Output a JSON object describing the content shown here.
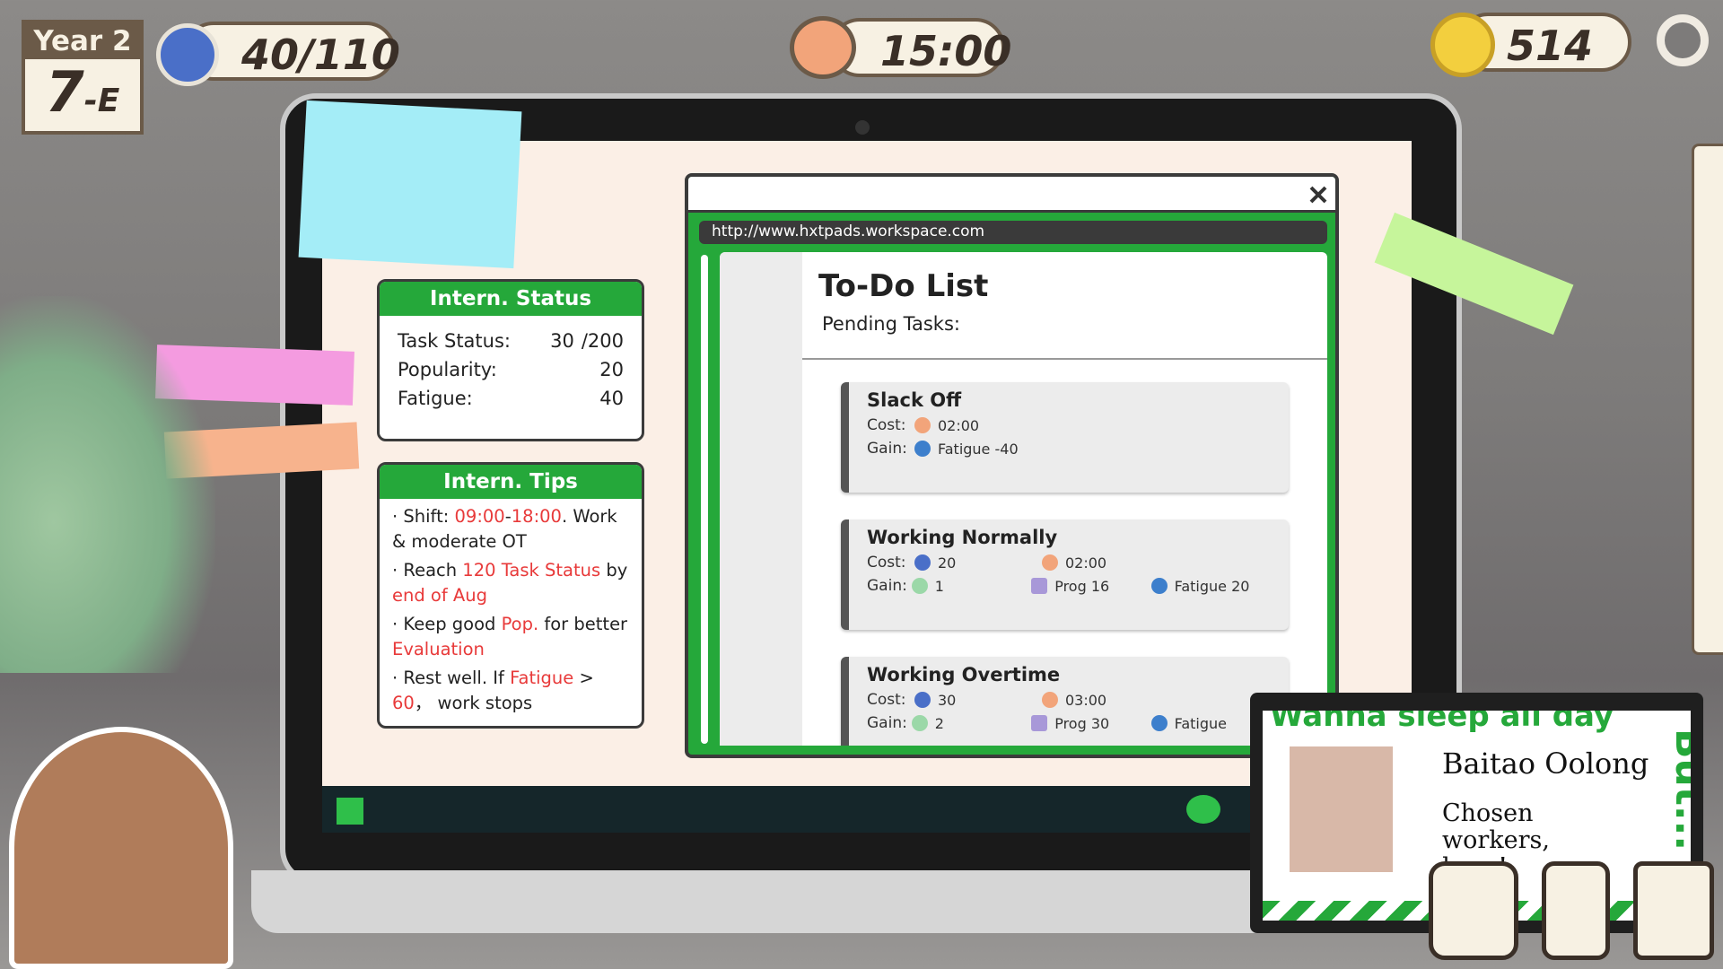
{
  "hud": {
    "year": "Year 2",
    "week": "7",
    "week_suffix": "-E",
    "energy": "40",
    "energy_max": "/110",
    "time": "15:00",
    "coins": "514"
  },
  "status": {
    "title": "Intern. Status",
    "rows": [
      {
        "label": "Task Status:",
        "value": "30",
        "max": "/200"
      },
      {
        "label": "Popularity:",
        "value": "20"
      },
      {
        "label": "Fatigue:",
        "value": "40"
      }
    ]
  },
  "tips": {
    "title": "Intern. Tips",
    "items": [
      [
        {
          "text": "· Shift: "
        },
        {
          "text": "09:00",
          "highlight": true
        },
        {
          "text": "-"
        },
        {
          "text": "18:00",
          "highlight": true
        },
        {
          "text": ". Work & moderate OT"
        }
      ],
      [
        {
          "text": "· Reach "
        },
        {
          "text": "120 Task Status",
          "highlight": true
        },
        {
          "text": " by "
        },
        {
          "text": "end of Aug",
          "highlight": true
        }
      ],
      [
        {
          "text": "· Keep good "
        },
        {
          "text": "Pop.",
          "highlight": true
        },
        {
          "text": " for better "
        },
        {
          "text": "Evaluation",
          "highlight": true
        }
      ],
      [
        {
          "text": "· Rest well. If "
        },
        {
          "text": "Fatigue",
          "highlight": true
        },
        {
          "text": " > "
        },
        {
          "text": "60",
          "highlight": true
        },
        {
          "text": "，  work stops"
        }
      ]
    ]
  },
  "browser": {
    "url": "http://www.hxtpads.workspace.com",
    "title": "To-Do List",
    "subtitle": "Pending Tasks:",
    "tasks": [
      {
        "name": "Slack Off",
        "cost_label": "Cost:",
        "gain_label": "Gain:",
        "cost": [
          {
            "icon": "clock",
            "text": "02:00"
          }
        ],
        "gain": [
          {
            "icon": "moon",
            "text": "Fatigue -40"
          }
        ]
      },
      {
        "name": "Working Normally",
        "cost_label": "Cost:",
        "gain_label": "Gain:",
        "cost": [
          {
            "icon": "energy",
            "text": "20"
          },
          {
            "icon": "clock",
            "text": "02:00"
          }
        ],
        "gain": [
          {
            "icon": "chat",
            "text": "1"
          },
          {
            "icon": "prog",
            "text": "Prog 16"
          },
          {
            "icon": "moon",
            "text": "Fatigue 20"
          }
        ]
      },
      {
        "name": "Working Overtime",
        "cost_label": "Cost:",
        "gain_label": "Gain:",
        "cost": [
          {
            "icon": "energy",
            "text": "30"
          },
          {
            "icon": "clock",
            "text": "03:00"
          }
        ],
        "gain": [
          {
            "icon": "chat",
            "text": "2"
          },
          {
            "icon": "prog",
            "text": "Prog 30"
          },
          {
            "icon": "moon",
            "text": "Fatigue"
          }
        ]
      }
    ]
  },
  "ad": {
    "headline": "Wanna sleep all day",
    "side": "But...",
    "brand": "Baitao Oolong",
    "tagline": "Chosen workers, here!"
  }
}
